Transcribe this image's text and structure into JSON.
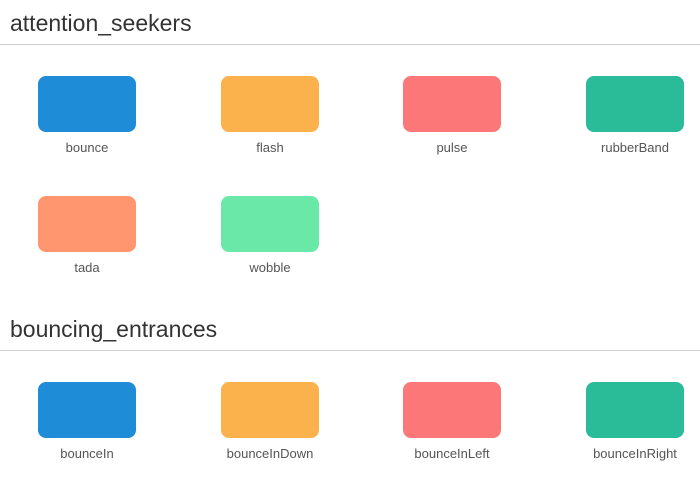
{
  "sections": [
    {
      "title": "attention_seekers",
      "items": [
        {
          "label": "bounce",
          "color": "#1e8cd6"
        },
        {
          "label": "flash",
          "color": "#fbb24c"
        },
        {
          "label": "pulse",
          "color": "#fc7878"
        },
        {
          "label": "rubberBand",
          "color": "#2abc98"
        },
        {
          "label": "tada",
          "color": "#ff9670"
        },
        {
          "label": "wobble",
          "color": "#69e8a8"
        }
      ]
    },
    {
      "title": "bouncing_entrances",
      "items": [
        {
          "label": "bounceIn",
          "color": "#1e8cd6"
        },
        {
          "label": "bounceInDown",
          "color": "#fbb24c"
        },
        {
          "label": "bounceInLeft",
          "color": "#fc7878"
        },
        {
          "label": "bounceInRight",
          "color": "#2abc98"
        }
      ]
    }
  ]
}
